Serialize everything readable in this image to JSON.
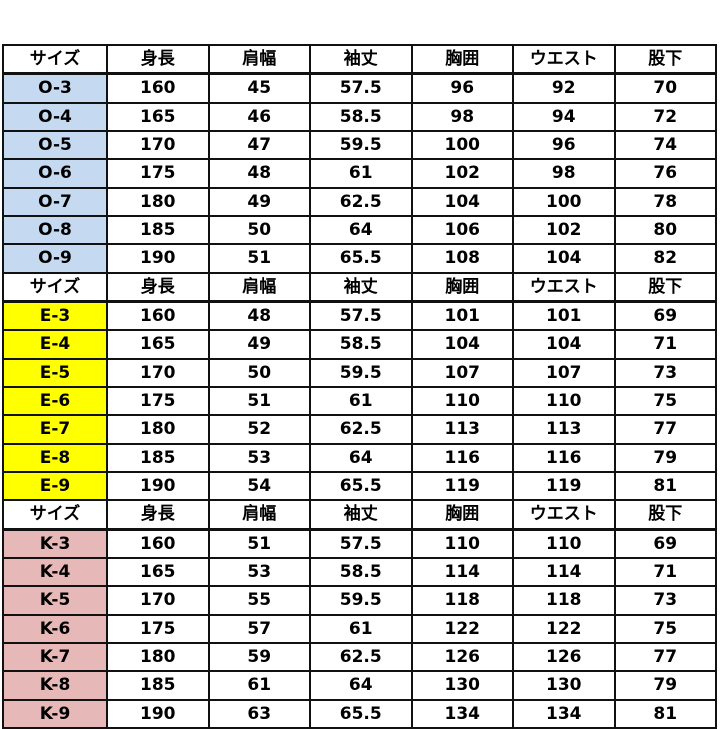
{
  "colors": {
    "O": "#c5d9f1",
    "E": "#ffff00",
    "K": "#e6b8b7"
  },
  "headers": [
    "サイズ",
    "身長",
    "肩幅",
    "袖丈",
    "胸囲",
    "ウエスト",
    "股下"
  ],
  "groups": [
    {
      "key": "O",
      "rows": [
        [
          "O-3",
          "160",
          "45",
          "57.5",
          "96",
          "92",
          "70"
        ],
        [
          "O-4",
          "165",
          "46",
          "58.5",
          "98",
          "94",
          "72"
        ],
        [
          "O-5",
          "170",
          "47",
          "59.5",
          "100",
          "96",
          "74"
        ],
        [
          "O-6",
          "175",
          "48",
          "61",
          "102",
          "98",
          "76"
        ],
        [
          "O-7",
          "180",
          "49",
          "62.5",
          "104",
          "100",
          "78"
        ],
        [
          "O-8",
          "185",
          "50",
          "64",
          "106",
          "102",
          "80"
        ],
        [
          "O-9",
          "190",
          "51",
          "65.5",
          "108",
          "104",
          "82"
        ]
      ]
    },
    {
      "key": "E",
      "rows": [
        [
          "E-3",
          "160",
          "48",
          "57.5",
          "101",
          "101",
          "69"
        ],
        [
          "E-4",
          "165",
          "49",
          "58.5",
          "104",
          "104",
          "71"
        ],
        [
          "E-5",
          "170",
          "50",
          "59.5",
          "107",
          "107",
          "73"
        ],
        [
          "E-6",
          "175",
          "51",
          "61",
          "110",
          "110",
          "75"
        ],
        [
          "E-7",
          "180",
          "52",
          "62.5",
          "113",
          "113",
          "77"
        ],
        [
          "E-8",
          "185",
          "53",
          "64",
          "116",
          "116",
          "79"
        ],
        [
          "E-9",
          "190",
          "54",
          "65.5",
          "119",
          "119",
          "81"
        ]
      ]
    },
    {
      "key": "K",
      "rows": [
        [
          "K-3",
          "160",
          "51",
          "57.5",
          "110",
          "110",
          "69"
        ],
        [
          "K-4",
          "165",
          "53",
          "58.5",
          "114",
          "114",
          "71"
        ],
        [
          "K-5",
          "170",
          "55",
          "59.5",
          "118",
          "118",
          "73"
        ],
        [
          "K-6",
          "175",
          "57",
          "61",
          "122",
          "122",
          "75"
        ],
        [
          "K-7",
          "180",
          "59",
          "62.5",
          "126",
          "126",
          "77"
        ],
        [
          "K-8",
          "185",
          "61",
          "64",
          "130",
          "130",
          "79"
        ],
        [
          "K-9",
          "190",
          "63",
          "65.5",
          "134",
          "134",
          "81"
        ]
      ]
    }
  ]
}
